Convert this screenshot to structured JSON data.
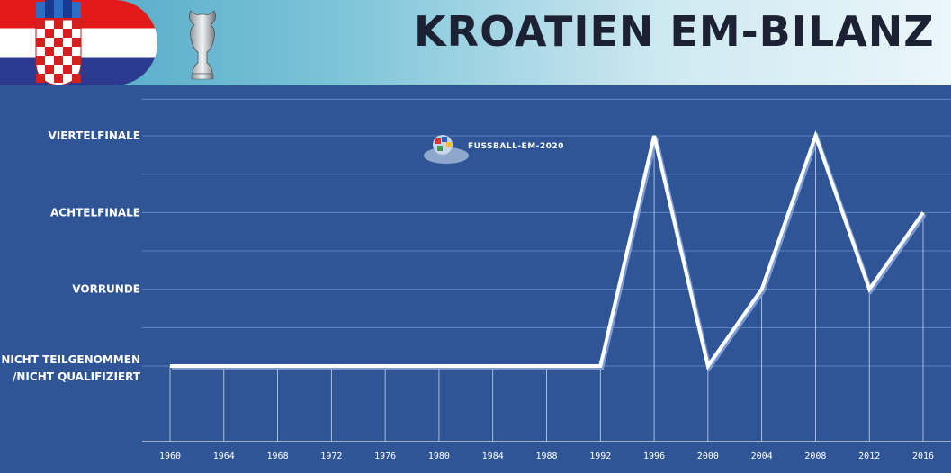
{
  "header": {
    "title": "Kroatien EM-Bilanz",
    "icons": [
      "croatia-flag",
      "em-trophy"
    ]
  },
  "watermark": {
    "text": "FUSSBALL-EM-2020"
  },
  "colors": {
    "background": "#2f5597",
    "line": "#ffffff",
    "grid": "#6f8fc4"
  },
  "chart_data": {
    "type": "line",
    "title": "Kroatien EM-Bilanz",
    "x": [
      "1960",
      "1964",
      "1968",
      "1972",
      "1976",
      "1980",
      "1984",
      "1988",
      "1992",
      "1996",
      "2000",
      "2004",
      "2008",
      "2012",
      "2016"
    ],
    "y_categories": [
      "Nicht teilgenommen /nicht qualifiziert",
      "Vorrunde",
      "Achtelfinale",
      "Viertelfinale"
    ],
    "series": [
      {
        "values": [
          0,
          0,
          0,
          0,
          0,
          0,
          0,
          0,
          0,
          3,
          0,
          1,
          3,
          1,
          2
        ]
      }
    ],
    "ylim": [
      0,
      3
    ],
    "grid": true,
    "legend": "none"
  }
}
